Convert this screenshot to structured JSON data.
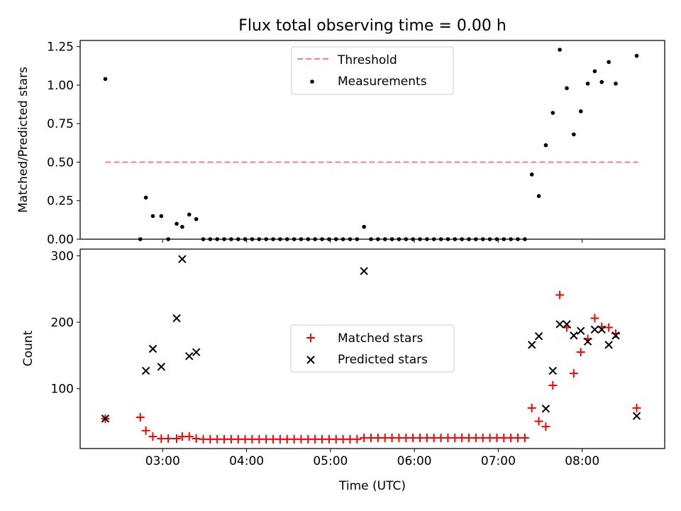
{
  "chart_data": [
    {
      "type": "scatter",
      "title": "Flux total observing time = 0.00 h",
      "xlabel": "",
      "ylabel": "Matched/Predicted stars",
      "xlim": [
        "02:01",
        "08:59"
      ],
      "ylim": [
        0,
        1.29
      ],
      "yticks": [
        "0.00",
        "0.25",
        "0.50",
        "0.75",
        "1.00",
        "1.25"
      ],
      "grid": false,
      "legend_position": "top-center",
      "threshold": {
        "name": "Threshold",
        "value": 0.5,
        "x_range": [
          "02:19",
          "08:40"
        ],
        "color": "#ff7f7f",
        "style": "dashed"
      },
      "series": [
        {
          "name": "Measurements",
          "color": "#000000",
          "marker": "dot",
          "points": [
            [
              "02:19",
              1.04
            ],
            [
              "02:44",
              0.0
            ],
            [
              "02:48",
              0.27
            ],
            [
              "02:53",
              0.15
            ],
            [
              "02:59",
              0.15
            ],
            [
              "03:04",
              0.0
            ],
            [
              "03:10",
              0.1
            ],
            [
              "03:14",
              0.08
            ],
            [
              "03:19",
              0.16
            ],
            [
              "03:24",
              0.13
            ],
            [
              "03:29",
              0.0
            ],
            [
              "03:34",
              0.0
            ],
            [
              "03:39",
              0.0
            ],
            [
              "03:44",
              0.0
            ],
            [
              "03:49",
              0.0
            ],
            [
              "03:54",
              0.0
            ],
            [
              "03:59",
              0.0
            ],
            [
              "04:04",
              0.0
            ],
            [
              "04:09",
              0.0
            ],
            [
              "04:14",
              0.0
            ],
            [
              "04:19",
              0.0
            ],
            [
              "04:24",
              0.0
            ],
            [
              "04:29",
              0.0
            ],
            [
              "04:34",
              0.0
            ],
            [
              "04:39",
              0.0
            ],
            [
              "04:44",
              0.0
            ],
            [
              "04:49",
              0.0
            ],
            [
              "04:54",
              0.0
            ],
            [
              "04:59",
              0.0
            ],
            [
              "05:04",
              0.0
            ],
            [
              "05:09",
              0.0
            ],
            [
              "05:14",
              0.0
            ],
            [
              "05:19",
              0.0
            ],
            [
              "05:24",
              0.08
            ],
            [
              "05:29",
              0.0
            ],
            [
              "05:34",
              0.0
            ],
            [
              "05:39",
              0.0
            ],
            [
              "05:44",
              0.0
            ],
            [
              "05:49",
              0.0
            ],
            [
              "05:54",
              0.0
            ],
            [
              "05:59",
              0.0
            ],
            [
              "06:04",
              0.0
            ],
            [
              "06:09",
              0.0
            ],
            [
              "06:14",
              0.0
            ],
            [
              "06:19",
              0.0
            ],
            [
              "06:24",
              0.0
            ],
            [
              "06:29",
              0.0
            ],
            [
              "06:34",
              0.0
            ],
            [
              "06:39",
              0.0
            ],
            [
              "06:44",
              0.0
            ],
            [
              "06:49",
              0.0
            ],
            [
              "06:54",
              0.0
            ],
            [
              "06:59",
              0.0
            ],
            [
              "07:04",
              0.0
            ],
            [
              "07:09",
              0.0
            ],
            [
              "07:14",
              0.0
            ],
            [
              "07:19",
              0.0
            ],
            [
              "07:24",
              0.42
            ],
            [
              "07:29",
              0.28
            ],
            [
              "07:34",
              0.61
            ],
            [
              "07:39",
              0.82
            ],
            [
              "07:44",
              1.23
            ],
            [
              "07:49",
              0.98
            ],
            [
              "07:54",
              0.68
            ],
            [
              "07:59",
              0.83
            ],
            [
              "08:04",
              1.01
            ],
            [
              "08:09",
              1.09
            ],
            [
              "08:14",
              1.02
            ],
            [
              "08:19",
              1.15
            ],
            [
              "08:24",
              1.01
            ],
            [
              "08:39",
              1.19
            ]
          ]
        }
      ]
    },
    {
      "type": "scatter",
      "title": "",
      "xlabel": "Time (UTC)",
      "ylabel": "Count",
      "xlim": [
        "02:01",
        "08:59"
      ],
      "ylim": [
        10,
        310
      ],
      "xticks": [
        "03:00",
        "04:00",
        "05:00",
        "06:00",
        "07:00",
        "08:00"
      ],
      "yticks": [
        "100",
        "200",
        "300"
      ],
      "grid": false,
      "legend_position": "center",
      "series": [
        {
          "name": "Matched stars",
          "color": "#ff0000",
          "marker": "plus",
          "points": [
            [
              "02:19",
              55
            ],
            [
              "02:44",
              57
            ],
            [
              "02:48",
              37
            ],
            [
              "02:53",
              28
            ],
            [
              "02:59",
              25
            ],
            [
              "03:04",
              25
            ],
            [
              "03:10",
              25
            ],
            [
              "03:14",
              28
            ],
            [
              "03:19",
              28
            ],
            [
              "03:24",
              25
            ],
            [
              "03:29",
              24
            ],
            [
              "03:34",
              24
            ],
            [
              "03:39",
              24
            ],
            [
              "03:44",
              24
            ],
            [
              "03:49",
              24
            ],
            [
              "03:54",
              24
            ],
            [
              "03:59",
              24
            ],
            [
              "04:04",
              24
            ],
            [
              "04:09",
              24
            ],
            [
              "04:14",
              24
            ],
            [
              "04:19",
              24
            ],
            [
              "04:24",
              24
            ],
            [
              "04:29",
              24
            ],
            [
              "04:34",
              24
            ],
            [
              "04:39",
              24
            ],
            [
              "04:44",
              24
            ],
            [
              "04:49",
              24
            ],
            [
              "04:54",
              24
            ],
            [
              "04:59",
              24
            ],
            [
              "05:04",
              24
            ],
            [
              "05:09",
              24
            ],
            [
              "05:14",
              24
            ],
            [
              "05:19",
              24
            ],
            [
              "05:24",
              26
            ],
            [
              "05:29",
              26
            ],
            [
              "05:34",
              26
            ],
            [
              "05:39",
              26
            ],
            [
              "05:44",
              26
            ],
            [
              "05:49",
              26
            ],
            [
              "05:54",
              26
            ],
            [
              "05:59",
              26
            ],
            [
              "06:04",
              26
            ],
            [
              "06:09",
              26
            ],
            [
              "06:14",
              26
            ],
            [
              "06:19",
              26
            ],
            [
              "06:24",
              26
            ],
            [
              "06:29",
              26
            ],
            [
              "06:34",
              26
            ],
            [
              "06:39",
              26
            ],
            [
              "06:44",
              26
            ],
            [
              "06:49",
              26
            ],
            [
              "06:54",
              26
            ],
            [
              "06:59",
              26
            ],
            [
              "07:04",
              26
            ],
            [
              "07:09",
              26
            ],
            [
              "07:14",
              26
            ],
            [
              "07:19",
              26
            ],
            [
              "07:24",
              71
            ],
            [
              "07:29",
              51
            ],
            [
              "07:34",
              43
            ],
            [
              "07:39",
              105
            ],
            [
              "07:44",
              241
            ],
            [
              "07:49",
              192
            ],
            [
              "07:54",
              123
            ],
            [
              "07:59",
              155
            ],
            [
              "08:04",
              175
            ],
            [
              "08:09",
              206
            ],
            [
              "08:14",
              193
            ],
            [
              "08:19",
              192
            ],
            [
              "08:24",
              183
            ],
            [
              "08:39",
              71
            ]
          ]
        },
        {
          "name": "Predicted stars",
          "color": "#000000",
          "marker": "cross",
          "points": [
            [
              "02:19",
              55
            ],
            [
              "02:48",
              127
            ],
            [
              "02:53",
              160
            ],
            [
              "02:59",
              133
            ],
            [
              "03:10",
              206
            ],
            [
              "03:14",
              295
            ],
            [
              "03:19",
              149
            ],
            [
              "03:24",
              155
            ],
            [
              "05:24",
              277
            ],
            [
              "07:24",
              166
            ],
            [
              "07:29",
              179
            ],
            [
              "07:34",
              70
            ],
            [
              "07:39",
              127
            ],
            [
              "07:44",
              197
            ],
            [
              "07:49",
              197
            ],
            [
              "07:54",
              180
            ],
            [
              "07:59",
              187
            ],
            [
              "08:04",
              171
            ],
            [
              "08:09",
              189
            ],
            [
              "08:14",
              189
            ],
            [
              "08:19",
              166
            ],
            [
              "08:24",
              180
            ],
            [
              "08:39",
              59
            ]
          ]
        }
      ]
    }
  ]
}
